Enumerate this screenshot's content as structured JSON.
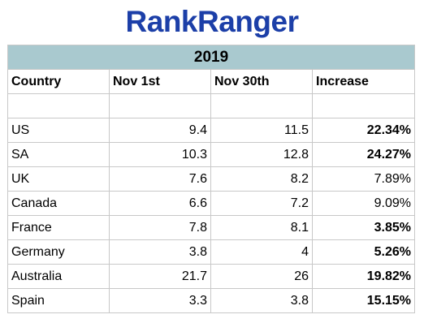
{
  "brand": {
    "part1": "Rank",
    "part2": "Ranger"
  },
  "chart_data": {
    "type": "table",
    "title": "2019",
    "columns": [
      "Country",
      "Nov 1st",
      "Nov 30th",
      "Increase"
    ],
    "rows": [
      {
        "country": "US",
        "nov1": "9.4",
        "nov30": "11.5",
        "increase": "22.34%",
        "highlight": true
      },
      {
        "country": "SA",
        "nov1": "10.3",
        "nov30": "12.8",
        "increase": "24.27%",
        "highlight": true
      },
      {
        "country": "UK",
        "nov1": "7.6",
        "nov30": "8.2",
        "increase": "7.89%",
        "highlight": false
      },
      {
        "country": "Canada",
        "nov1": "6.6",
        "nov30": "7.2",
        "increase": "9.09%",
        "highlight": false
      },
      {
        "country": "France",
        "nov1": "7.8",
        "nov30": "8.1",
        "increase": "3.85%",
        "highlight": true
      },
      {
        "country": "Germany",
        "nov1": "3.8",
        "nov30": "4",
        "increase": "5.26%",
        "highlight": true
      },
      {
        "country": "Australia",
        "nov1": "21.7",
        "nov30": "26",
        "increase": "19.82%",
        "highlight": true
      },
      {
        "country": "Spain",
        "nov1": "3.3",
        "nov30": "3.8",
        "increase": "15.15%",
        "highlight": true
      }
    ]
  },
  "colors": {
    "brand": "#1c3fa8",
    "title_band": "#a9c9cf",
    "grid": "#c8c8c8"
  }
}
